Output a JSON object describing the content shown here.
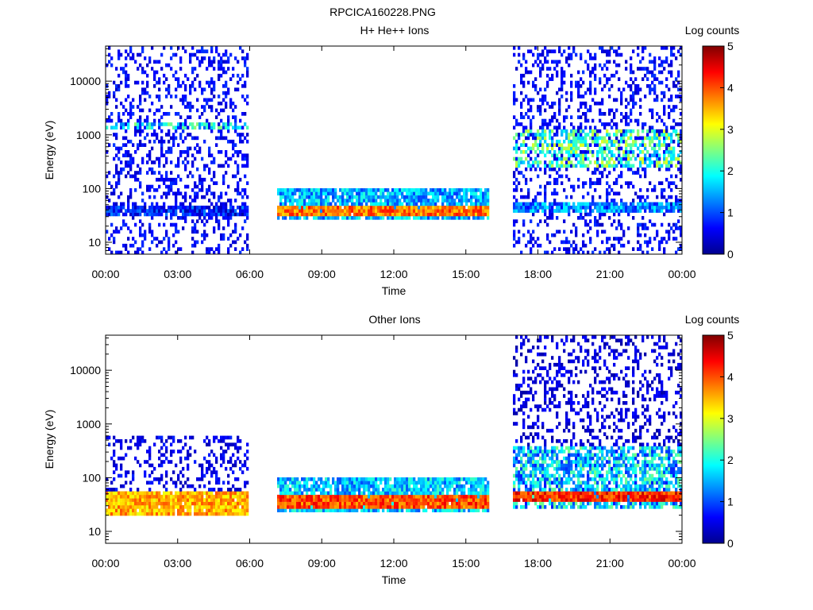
{
  "figure_title": "RPCICA160228.PNG",
  "chart_data": [
    {
      "type": "heatmap",
      "title": "H+ He++ Ions",
      "xlabel": "Time",
      "ylabel": "Energy (eV)",
      "x_ticks": [
        "00:00",
        "03:00",
        "06:00",
        "09:00",
        "12:00",
        "15:00",
        "18:00",
        "21:00",
        "00:00"
      ],
      "x_range_hours": [
        0,
        24
      ],
      "y_scale": "log",
      "y_ticks": [
        "10",
        "100",
        "1000",
        "10000"
      ],
      "y_range": [
        6,
        45000
      ],
      "colorbar": {
        "label": "Log counts",
        "ticks": [
          "0",
          "1",
          "2",
          "3",
          "4",
          "5"
        ],
        "range": [
          0,
          5
        ]
      },
      "data_gaps_hours": [
        [
          6.0,
          7.1
        ],
        [
          16.0,
          17.0
        ]
      ],
      "features": [
        {
          "t_start": 0.0,
          "t_end": 6.0,
          "e_low": 6,
          "e_high": 45000,
          "level": 0.6,
          "pattern": "sparse noise"
        },
        {
          "t_start": 0.0,
          "t_end": 6.0,
          "e_low": 30,
          "e_high": 45,
          "level": 0.7,
          "pattern": "band"
        },
        {
          "t_start": 0.0,
          "t_end": 6.0,
          "e_low": 1300,
          "e_high": 1700,
          "level": 1.8,
          "pattern": "patchy band"
        },
        {
          "t_start": 7.1,
          "t_end": 16.0,
          "e_low": 25,
          "e_high": 95,
          "level": 1.5,
          "pattern": "band"
        },
        {
          "t_start": 7.1,
          "t_end": 16.0,
          "e_low": 30,
          "e_high": 45,
          "level": 3.8,
          "pattern": "band core"
        },
        {
          "t_start": 17.0,
          "t_end": 24.0,
          "e_low": 6,
          "e_high": 45000,
          "level": 0.6,
          "pattern": "sparse noise"
        },
        {
          "t_start": 17.0,
          "t_end": 24.0,
          "e_low": 35,
          "e_high": 60,
          "level": 1.3,
          "pattern": "band"
        },
        {
          "t_start": 17.0,
          "t_end": 24.0,
          "e_low": 250,
          "e_high": 1300,
          "level": 2.2,
          "pattern": "patchy band"
        }
      ]
    },
    {
      "type": "heatmap",
      "title": "Other Ions",
      "xlabel": "Time",
      "ylabel": "Energy (eV)",
      "x_ticks": [
        "00:00",
        "03:00",
        "06:00",
        "09:00",
        "12:00",
        "15:00",
        "18:00",
        "21:00",
        "00:00"
      ],
      "x_range_hours": [
        0,
        24
      ],
      "y_scale": "log",
      "y_ticks": [
        "10",
        "100",
        "1000",
        "10000"
      ],
      "y_range": [
        6,
        45000
      ],
      "colorbar": {
        "label": "Log counts",
        "ticks": [
          "0",
          "1",
          "2",
          "3",
          "4",
          "5"
        ],
        "range": [
          0,
          5
        ]
      },
      "data_gaps_hours": [
        [
          6.0,
          7.1
        ],
        [
          16.0,
          17.0
        ]
      ],
      "features": [
        {
          "t_start": 0.0,
          "t_end": 6.0,
          "e_low": 20,
          "e_high": 55,
          "level": 3.5,
          "pattern": "band core"
        },
        {
          "t_start": 0.0,
          "t_end": 6.0,
          "e_low": 55,
          "e_high": 600,
          "level": 0.5,
          "pattern": "sparse noise"
        },
        {
          "t_start": 7.1,
          "t_end": 16.0,
          "e_low": 22,
          "e_high": 95,
          "level": 1.6,
          "pattern": "band"
        },
        {
          "t_start": 7.1,
          "t_end": 16.0,
          "e_low": 28,
          "e_high": 45,
          "level": 4.0,
          "pattern": "band core"
        },
        {
          "t_start": 17.0,
          "t_end": 24.0,
          "e_low": 28,
          "e_high": 400,
          "level": 1.6,
          "pattern": "broad band"
        },
        {
          "t_start": 17.0,
          "t_end": 24.0,
          "e_low": 38,
          "e_high": 55,
          "level": 4.2,
          "pattern": "band core"
        },
        {
          "t_start": 17.0,
          "t_end": 24.0,
          "e_low": 400,
          "e_high": 45000,
          "level": 0.4,
          "pattern": "sparse noise"
        }
      ]
    }
  ]
}
